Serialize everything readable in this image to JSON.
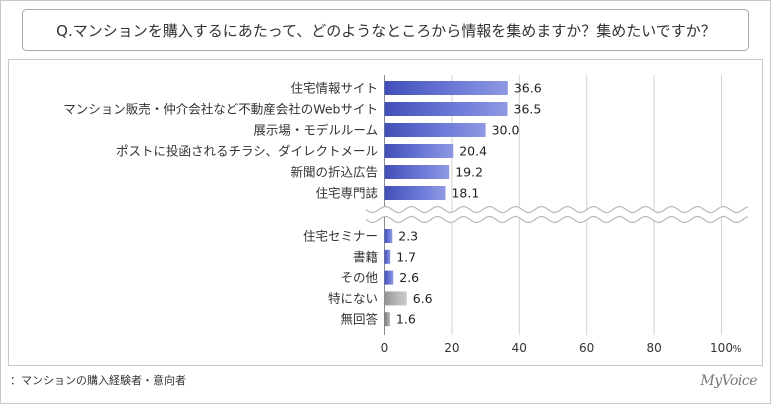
{
  "chart_data": {
    "type": "bar",
    "orientation": "horizontal",
    "title": "Q.マンションを購入するにあたって、どのようなところから情報を集めますか？集めたいですか？",
    "xlim": [
      0,
      100
    ],
    "xticks": [
      0,
      20,
      40,
      60,
      80,
      100
    ],
    "x_unit": "%",
    "grid": true,
    "axis_break": true,
    "groups": [
      {
        "categories": [
          "住宅情報サイト",
          "マンション販売・仲介会社など不動産会社のWebサイト",
          "展示場・モデルルーム",
          "ポストに投函されるチラシ、ダイレクトメール",
          "新聞の折込広告",
          "住宅専門誌"
        ],
        "values": [
          36.6,
          36.5,
          30.0,
          20.4,
          19.2,
          18.1
        ],
        "colors": [
          "#4a5ad0",
          "#4a5ad0",
          "#4a5ad0",
          "#4a5ad0",
          "#4a5ad0",
          "#4a5ad0"
        ]
      },
      {
        "categories": [
          "住宅セミナー",
          "書籍",
          "その他",
          "特にない",
          "無回答"
        ],
        "values": [
          2.3,
          1.7,
          2.6,
          6.6,
          1.6
        ],
        "colors": [
          "#4a5ad0",
          "#4a5ad0",
          "#4a5ad0",
          "#a9a9a9",
          "#8a8a8a"
        ]
      }
    ]
  },
  "footer": {
    "note": "：マンションの購入経験者・意向者",
    "logo": "MyVoice"
  }
}
